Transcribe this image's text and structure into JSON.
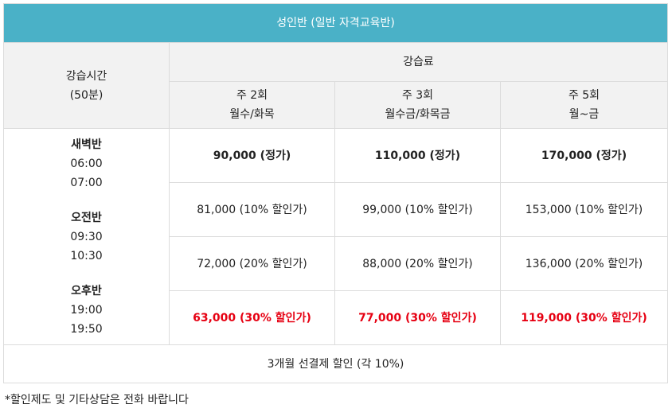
{
  "title": "성인반 (일반 자격교육반)",
  "header": {
    "time_label": "강습시간",
    "time_sub": "(50분)",
    "fee_label": "강습료",
    "plans": [
      {
        "freq": "주 2회",
        "days": "월수/화목"
      },
      {
        "freq": "주 3회",
        "days": "월수금/화목금"
      },
      {
        "freq": "주 5회",
        "days": "월~금"
      }
    ]
  },
  "schedule": [
    {
      "name": "새벽반",
      "start": "06:00",
      "end": "07:00"
    },
    {
      "name": "오전반",
      "start": "09:30",
      "end": "10:30"
    },
    {
      "name": "오후반",
      "start": "19:00",
      "end": "19:50"
    }
  ],
  "price_rows": [
    {
      "style": "bold",
      "cells": [
        "90,000 (정가)",
        "110,000 (정가)",
        "170,000 (정가)"
      ]
    },
    {
      "style": "normal",
      "cells": [
        "81,000 (10% 할인가)",
        "99,000 (10% 할인가)",
        "153,000 (10% 할인가)"
      ]
    },
    {
      "style": "normal",
      "cells": [
        "72,000 (20% 할인가)",
        "88,000 (20% 할인가)",
        "136,000 (20% 할인가)"
      ]
    },
    {
      "style": "red",
      "cells": [
        "63,000 (30% 할인가)",
        "77,000 (30% 할인가)",
        "119,000 (30% 할인가)"
      ]
    }
  ],
  "footer": "3개월 선결제 할인 (각 10%)",
  "note": "*할인제도 및 기타상담은 전화 바랍니다",
  "colors": {
    "title_bg": "#4ab1c7",
    "header_bg": "#f2f2f2",
    "highlight": "#e60012"
  }
}
